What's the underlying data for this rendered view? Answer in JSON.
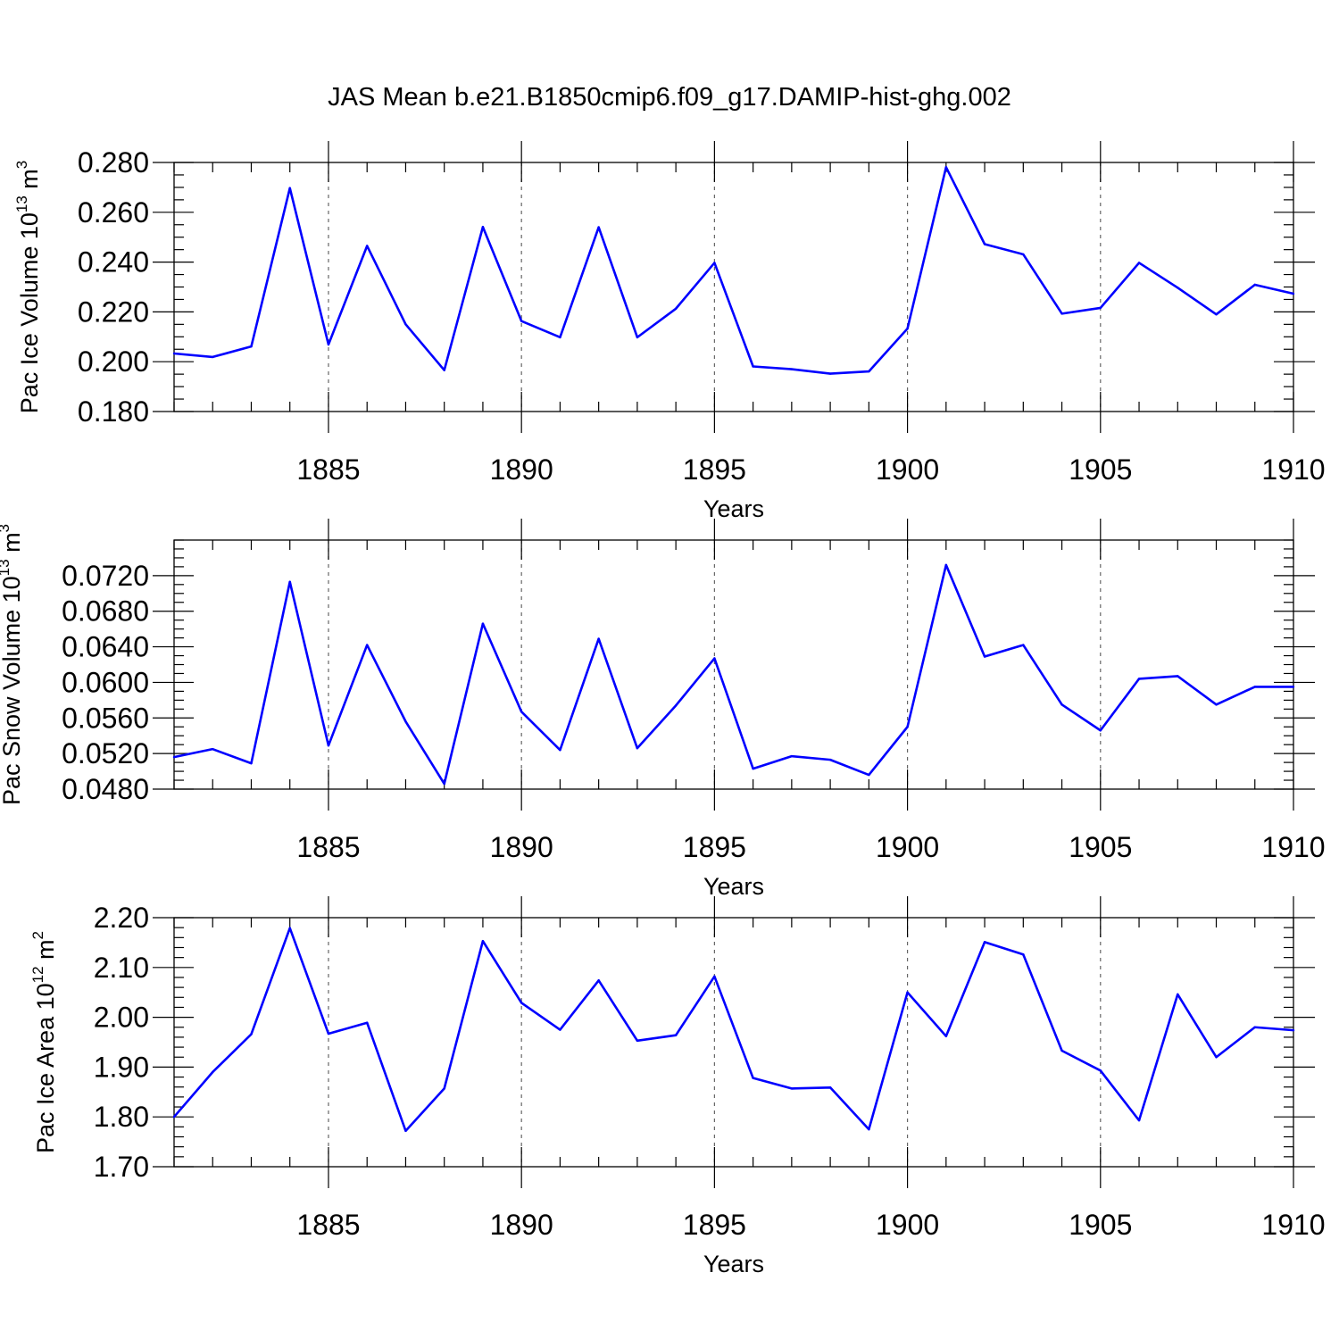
{
  "title": "JAS Mean b.e21.B1850cmip6.f09_g17.DAMIP-hist-ghg.002",
  "chart_data": [
    {
      "type": "line",
      "title": "JAS Mean b.e21.B1850cmip6.f09_g17.DAMIP-hist-ghg.002",
      "xlabel": "Years",
      "ylabel": {
        "text": "Pac Ice Volume 10",
        "sup": "13",
        "unit": " m",
        "unit_sup": "3"
      },
      "xlim": [
        1881,
        1910
      ],
      "ylim": [
        0.18,
        0.28
      ],
      "xticks": [
        1885,
        1890,
        1895,
        1900,
        1905,
        1910
      ],
      "xtick_labels": [
        "1885",
        "1890",
        "1895",
        "1900",
        "1905",
        "1910"
      ],
      "yticks": [
        0.18,
        0.2,
        0.22,
        0.24,
        0.26,
        0.28
      ],
      "ytick_labels": [
        "0.180",
        "0.200",
        "0.220",
        "0.240",
        "0.260",
        "0.280"
      ],
      "y_minor_step": 0.005,
      "grid": "x-dashed",
      "series": [
        {
          "name": "Pac Ice Volume",
          "color": "#0000ff",
          "x": [
            1881,
            1882,
            1883,
            1884,
            1885,
            1886,
            1887,
            1888,
            1889,
            1890,
            1891,
            1892,
            1893,
            1894,
            1895,
            1896,
            1897,
            1898,
            1899,
            1900,
            1901,
            1902,
            1903,
            1904,
            1905,
            1906,
            1907,
            1908,
            1909,
            1910
          ],
          "values": [
            0.2033,
            0.2019,
            0.2061,
            0.2697,
            0.2069,
            0.2465,
            0.215,
            0.1966,
            0.2541,
            0.2163,
            0.2098,
            0.254,
            0.2098,
            0.2213,
            0.2397,
            0.1981,
            0.197,
            0.1952,
            0.1961,
            0.2133,
            0.2781,
            0.2472,
            0.2431,
            0.2193,
            0.2216,
            0.2397,
            0.2297,
            0.219,
            0.2309,
            0.2273
          ]
        }
      ]
    },
    {
      "type": "line",
      "xlabel": "Years",
      "ylabel": {
        "text": "Pac Snow Volume 10",
        "sup": "13",
        "unit": " m",
        "unit_sup": "3"
      },
      "xlim": [
        1881,
        1910
      ],
      "ylim": [
        0.048,
        0.076
      ],
      "xticks": [
        1885,
        1890,
        1895,
        1900,
        1905,
        1910
      ],
      "xtick_labels": [
        "1885",
        "1890",
        "1895",
        "1900",
        "1905",
        "1910"
      ],
      "yticks": [
        0.048,
        0.052,
        0.056,
        0.06,
        0.064,
        0.068,
        0.072
      ],
      "ytick_labels": [
        "0.0480",
        "0.0520",
        "0.0560",
        "0.0600",
        "0.0640",
        "0.0680",
        "0.0720"
      ],
      "y_minor_step": 0.001,
      "grid": "x-dashed",
      "series": [
        {
          "name": "Pac Snow Volume",
          "color": "#0000ff",
          "x": [
            1881,
            1882,
            1883,
            1884,
            1885,
            1886,
            1887,
            1888,
            1889,
            1890,
            1891,
            1892,
            1893,
            1894,
            1895,
            1896,
            1897,
            1898,
            1899,
            1900,
            1901,
            1902,
            1903,
            1904,
            1905,
            1906,
            1907,
            1908,
            1909,
            1910
          ],
          "values": [
            0.0516,
            0.0525,
            0.0509,
            0.0713,
            0.0529,
            0.0642,
            0.0556,
            0.0486,
            0.0666,
            0.0567,
            0.0524,
            0.0649,
            0.0526,
            0.0574,
            0.0627,
            0.0503,
            0.0517,
            0.0513,
            0.0496,
            0.055,
            0.0732,
            0.0629,
            0.0642,
            0.0575,
            0.0546,
            0.0604,
            0.0607,
            0.0575,
            0.0595,
            0.0595
          ]
        }
      ]
    },
    {
      "type": "line",
      "xlabel": "Years",
      "ylabel": {
        "text": "Pac Ice Area 10",
        "sup": "12",
        "unit": " m",
        "unit_sup": "2"
      },
      "xlim": [
        1881,
        1910
      ],
      "ylim": [
        1.7,
        2.2
      ],
      "xticks": [
        1885,
        1890,
        1895,
        1900,
        1905,
        1910
      ],
      "xtick_labels": [
        "1885",
        "1890",
        "1895",
        "1900",
        "1905",
        "1910"
      ],
      "yticks": [
        1.7,
        1.8,
        1.9,
        2.0,
        2.1,
        2.2
      ],
      "ytick_labels": [
        "1.70",
        "1.80",
        "1.90",
        "2.00",
        "2.10",
        "2.20"
      ],
      "y_minor_step": 0.02,
      "grid": "x-dashed",
      "series": [
        {
          "name": "Pac Ice Area",
          "color": "#0000ff",
          "x": [
            1881,
            1882,
            1883,
            1884,
            1885,
            1886,
            1887,
            1888,
            1889,
            1890,
            1891,
            1892,
            1893,
            1894,
            1895,
            1896,
            1897,
            1898,
            1899,
            1900,
            1901,
            1902,
            1903,
            1904,
            1905,
            1906,
            1907,
            1908,
            1909,
            1910
          ],
          "values": [
            1.8,
            1.89,
            1.966,
            2.179,
            1.967,
            1.989,
            1.772,
            1.857,
            2.153,
            2.029,
            1.975,
            2.074,
            1.953,
            1.964,
            2.082,
            1.878,
            1.857,
            1.859,
            1.775,
            2.05,
            1.962,
            2.151,
            2.126,
            1.933,
            1.893,
            1.793,
            2.046,
            1.92,
            1.98,
            1.974
          ]
        }
      ]
    }
  ]
}
